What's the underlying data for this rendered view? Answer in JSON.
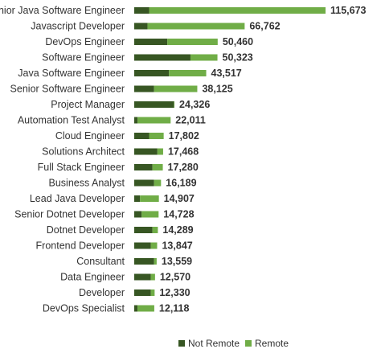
{
  "chart_data": {
    "type": "bar",
    "orientation": "horizontal",
    "stacked": true,
    "title": "",
    "xlabel": "",
    "ylabel": "",
    "grid": false,
    "legend_position": "bottom-right",
    "categories": [
      "Senior Java Software Engineer",
      "Javascript Developer",
      "DevOps Engineer",
      "Software Engineer",
      "Java Software Engineer",
      "Senior Software Engineer",
      "Project Manager",
      "Automation Test Analyst",
      "Cloud Engineer",
      "Solutions Architect",
      "Full Stack Engineer",
      "Business Analyst",
      "Lead Java Developer",
      "Senior Dotnet Developer",
      "Dotnet Developer",
      "Frontend Developer",
      "Consultant",
      "Data Engineer",
      "Developer",
      "DevOps Specialist"
    ],
    "totals": [
      115673,
      66762,
      50460,
      50323,
      43517,
      38125,
      24326,
      22011,
      17802,
      17468,
      17280,
      16189,
      14907,
      14728,
      14289,
      13847,
      13559,
      12570,
      12330,
      12118
    ],
    "total_labels": [
      "115,673",
      "66,762",
      "50,460",
      "50,323",
      "43,517",
      "38,125",
      "24,326",
      "22,011",
      "17,802",
      "17,468",
      "17,280",
      "16,189",
      "14,907",
      "14,728",
      "14,289",
      "13,847",
      "13,559",
      "12,570",
      "12,330",
      "12,118"
    ],
    "series": [
      {
        "name": "Not Remote",
        "color": "#375623",
        "values": [
          9000,
          8000,
          20000,
          34000,
          21000,
          12000,
          24000,
          2000,
          9000,
          14000,
          11000,
          12000,
          3500,
          4500,
          11000,
          10000,
          12000,
          10000,
          10000,
          2000
        ]
      },
      {
        "name": "Remote",
        "color": "#70AD47",
        "values": [
          106673,
          58762,
          30460,
          16323,
          22517,
          26125,
          326,
          20011,
          8802,
          3468,
          6280,
          4189,
          11407,
          10228,
          3289,
          3847,
          1559,
          2570,
          2330,
          10118
        ]
      }
    ],
    "xlim": [
      0,
      115673
    ]
  }
}
